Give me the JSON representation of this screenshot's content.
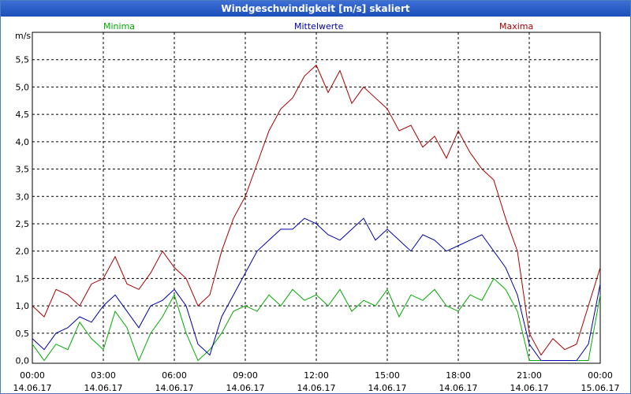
{
  "window": {
    "title": "Windgeschwindigkeit [m/s] skaliert"
  },
  "chart_data": {
    "type": "line",
    "title": "Windgeschwindigkeit [m/s] skaliert",
    "ylabel": "m/s",
    "xlabel": "",
    "ylim": [
      -0.05,
      6.0
    ],
    "xlim": [
      0,
      24
    ],
    "grid": true,
    "y_ticks": [
      "0,0",
      "0,5",
      "1,0",
      "1,5",
      "2,0",
      "2,5",
      "3,0",
      "3,5",
      "4,0",
      "4,5",
      "5,0",
      "5,5"
    ],
    "x_ticks": [
      {
        "time": "00:00",
        "date": "14.06.17"
      },
      {
        "time": "03:00",
        "date": "14.06.17"
      },
      {
        "time": "06:00",
        "date": "14.06.17"
      },
      {
        "time": "09:00",
        "date": "14.06.17"
      },
      {
        "time": "12:00",
        "date": "14.06.17"
      },
      {
        "time": "15:00",
        "date": "14.06.17"
      },
      {
        "time": "18:00",
        "date": "14.06.17"
      },
      {
        "time": "21:00",
        "date": "14.06.17"
      },
      {
        "time": "00:00",
        "date": "15.06.17"
      }
    ],
    "legend": [
      "Minima",
      "Mittelwerte",
      "Maxima"
    ],
    "series": [
      {
        "name": "Minima",
        "color": "#00aa00",
        "x": [
          0,
          0.5,
          1,
          1.5,
          2,
          2.5,
          3,
          3.5,
          4,
          4.5,
          5,
          5.5,
          6,
          6.5,
          7,
          7.5,
          8,
          8.5,
          9,
          9.5,
          10,
          10.5,
          11,
          11.5,
          12,
          12.5,
          13,
          13.5,
          14,
          14.5,
          15,
          15.5,
          16,
          16.5,
          17,
          17.5,
          18,
          18.5,
          19,
          19.5,
          20,
          20.5,
          21,
          21.5,
          22,
          22.5,
          23,
          23.5,
          24
        ],
        "values": [
          0.3,
          0.0,
          0.3,
          0.2,
          0.7,
          0.4,
          0.2,
          0.9,
          0.6,
          0.0,
          0.5,
          0.8,
          1.2,
          0.5,
          0.0,
          0.2,
          0.5,
          0.9,
          1.0,
          0.9,
          1.2,
          1.0,
          1.3,
          1.1,
          1.2,
          1.0,
          1.3,
          0.9,
          1.1,
          1.0,
          1.3,
          0.8,
          1.2,
          1.1,
          1.3,
          1.0,
          0.9,
          1.2,
          1.1,
          1.5,
          1.3,
          0.9,
          0.0,
          0.0,
          0.0,
          0.0,
          0.0,
          0.0,
          1.2
        ]
      },
      {
        "name": "Mittelwerte",
        "color": "#0000aa",
        "x": [
          0,
          0.5,
          1,
          1.5,
          2,
          2.5,
          3,
          3.5,
          4,
          4.5,
          5,
          5.5,
          6,
          6.5,
          7,
          7.5,
          8,
          8.5,
          9,
          9.5,
          10,
          10.5,
          11,
          11.5,
          12,
          12.5,
          13,
          13.5,
          14,
          14.5,
          15,
          15.5,
          16,
          16.5,
          17,
          17.5,
          18,
          18.5,
          19,
          19.5,
          20,
          20.5,
          21,
          21.5,
          22,
          22.5,
          23,
          23.5,
          24
        ],
        "values": [
          0.4,
          0.2,
          0.5,
          0.6,
          0.8,
          0.7,
          1.0,
          1.2,
          0.9,
          0.6,
          1.0,
          1.1,
          1.3,
          1.0,
          0.3,
          0.1,
          0.8,
          1.2,
          1.6,
          2.0,
          2.2,
          2.4,
          2.4,
          2.6,
          2.5,
          2.3,
          2.2,
          2.4,
          2.6,
          2.2,
          2.4,
          2.2,
          2.0,
          2.3,
          2.2,
          2.0,
          2.1,
          2.2,
          2.3,
          2.0,
          1.7,
          1.2,
          0.3,
          0.0,
          0.0,
          0.0,
          0.0,
          0.3,
          1.4
        ]
      },
      {
        "name": "Maxima",
        "color": "#aa0000",
        "x": [
          0,
          0.5,
          1,
          1.5,
          2,
          2.5,
          3,
          3.5,
          4,
          4.5,
          5,
          5.5,
          6,
          6.5,
          7,
          7.5,
          8,
          8.5,
          9,
          9.5,
          10,
          10.5,
          11,
          11.5,
          12,
          12.5,
          13,
          13.5,
          14,
          14.5,
          15,
          15.5,
          16,
          16.5,
          17,
          17.5,
          18,
          18.5,
          19,
          19.5,
          20,
          20.5,
          21,
          21.5,
          22,
          22.5,
          23,
          23.5,
          24
        ],
        "values": [
          1.0,
          0.8,
          1.3,
          1.2,
          1.0,
          1.4,
          1.5,
          1.9,
          1.4,
          1.3,
          1.6,
          2.0,
          1.7,
          1.5,
          1.0,
          1.2,
          2.0,
          2.6,
          3.0,
          3.6,
          4.2,
          4.6,
          4.8,
          5.2,
          5.4,
          4.9,
          5.3,
          4.7,
          5.0,
          4.8,
          4.6,
          4.2,
          4.3,
          3.9,
          4.1,
          3.7,
          4.2,
          3.8,
          3.5,
          3.3,
          2.6,
          2.0,
          0.5,
          0.1,
          0.4,
          0.2,
          0.3,
          1.0,
          1.7
        ]
      }
    ]
  }
}
